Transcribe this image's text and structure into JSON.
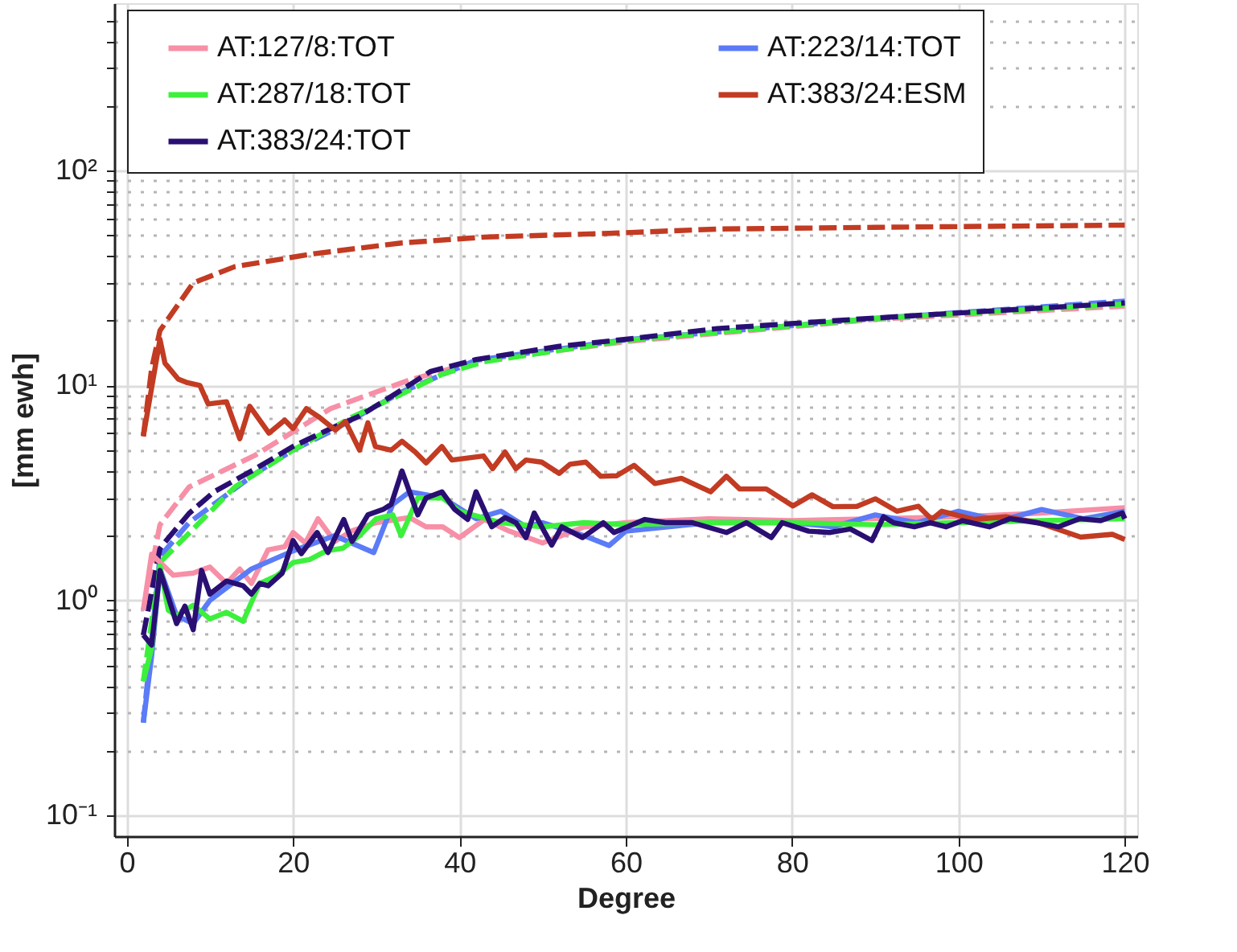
{
  "chart_data": {
    "type": "line",
    "xlabel": "Degree",
    "ylabel": "[mm ewh]",
    "log": "y",
    "grid": true,
    "legend": "top",
    "xlim": [
      -1.5,
      121.5
    ],
    "xticks": [
      0,
      20,
      40,
      60,
      80,
      100,
      120
    ],
    "ylim": [
      0.08,
      600
    ],
    "yticks": [
      {
        "value": 0.1,
        "label": "10⁻¹"
      },
      {
        "value": 0.2,
        "label": null
      },
      {
        "value": 0.3,
        "label": null
      },
      {
        "value": 0.4,
        "label": null
      },
      {
        "value": 0.5,
        "label": null
      },
      {
        "value": 0.6,
        "label": null
      },
      {
        "value": 0.7,
        "label": null
      },
      {
        "value": 0.8,
        "label": null
      },
      {
        "value": 0.9,
        "label": null
      },
      {
        "value": 1,
        "label": "10⁰"
      },
      {
        "value": 2,
        "label": null
      },
      {
        "value": 3,
        "label": null
      },
      {
        "value": 4,
        "label": null
      },
      {
        "value": 5,
        "label": null
      },
      {
        "value": 6,
        "label": null
      },
      {
        "value": 7,
        "label": null
      },
      {
        "value": 8,
        "label": null
      },
      {
        "value": 9,
        "label": null
      },
      {
        "value": 10,
        "label": "10¹"
      },
      {
        "value": 20,
        "label": null
      },
      {
        "value": 30,
        "label": null
      },
      {
        "value": 40,
        "label": null
      },
      {
        "value": 50,
        "label": null
      },
      {
        "value": 60,
        "label": null
      },
      {
        "value": 70,
        "label": null
      },
      {
        "value": 80,
        "label": null
      },
      {
        "value": 90,
        "label": null
      },
      {
        "value": 100,
        "label": "10²"
      },
      {
        "value": 200,
        "label": null
      },
      {
        "value": 300,
        "label": null
      },
      {
        "value": 400,
        "label": null
      },
      {
        "value": 500,
        "label": null
      }
    ],
    "series": [
      {
        "color": "#c23b22",
        "line_style": "dashed",
        "x": [
          2,
          3,
          4,
          8,
          13,
          22.5,
          33,
          43,
          58,
          71,
          90,
          120
        ],
        "values": [
          5.8,
          12,
          18,
          30,
          35.7,
          41,
          46,
          49,
          51,
          53.4,
          54.4,
          55.7
        ]
      },
      {
        "color": "#f78fa7",
        "line_style": "dashed",
        "x": [
          2,
          4,
          7.5,
          15.5,
          24.5,
          34,
          42,
          60,
          90,
          120
        ],
        "values": [
          0.9,
          2.25,
          3.37,
          4.75,
          7.8,
          10.6,
          12.9,
          16.0,
          20.3,
          23.4
        ]
      },
      {
        "color": "#5b7bf7",
        "line_style": "dashed",
        "x": [
          2,
          4,
          7.5,
          15.5,
          20,
          24.5,
          33,
          42,
          60,
          90,
          120
        ],
        "values": [
          0.27,
          1.6,
          2.3,
          3.9,
          5.0,
          6.1,
          9.3,
          13.1,
          16.3,
          20.5,
          24.7
        ]
      },
      {
        "color": "#3cf03c",
        "line_style": "dashed",
        "x": [
          2,
          4,
          8.5,
          13,
          20,
          27,
          33,
          38,
          43,
          60,
          90,
          120
        ],
        "values": [
          0.42,
          1.5,
          2.25,
          3.37,
          5.0,
          7.1,
          9.1,
          11.3,
          12.9,
          16.2,
          20.5,
          23.9
        ]
      },
      {
        "color": "#2a0f73",
        "line_style": "dashed",
        "x": [
          2,
          4,
          5,
          7.5,
          10.5,
          15.5,
          20,
          24.5,
          28,
          33,
          36.5,
          42,
          52,
          60,
          71,
          90,
          120
        ],
        "values": [
          0.69,
          1.74,
          1.95,
          2.54,
          3.2,
          4.1,
          5.2,
          6.3,
          7.2,
          9.5,
          11.6,
          13.2,
          15.2,
          16.4,
          18.4,
          20.6,
          24.2
        ]
      },
      {
        "name": "AT:127/8:TOT",
        "color": "#f78fa7",
        "x": [
          2,
          3,
          5.6,
          8,
          10,
          12,
          13.6,
          15,
          17,
          19,
          20,
          21.5,
          23,
          25,
          27,
          30,
          34,
          36,
          38,
          40,
          43,
          46,
          50,
          55,
          60,
          70,
          80,
          90,
          100,
          110,
          120
        ],
        "values": [
          0.9,
          1.64,
          1.31,
          1.34,
          1.43,
          1.2,
          1.4,
          1.2,
          1.72,
          1.78,
          2.07,
          1.85,
          2.4,
          1.88,
          2.1,
          2.3,
          2.43,
          2.2,
          2.2,
          1.96,
          2.38,
          2.1,
          1.85,
          2.2,
          2.3,
          2.4,
          2.35,
          2.4,
          2.45,
          2.55,
          2.7
        ]
      },
      {
        "name": "AT:223/14:TOT",
        "color": "#5b7bf7",
        "x": [
          2,
          3,
          4,
          6,
          8,
          10,
          15,
          20,
          25,
          29.7,
          32,
          34,
          38,
          42,
          45,
          48,
          50,
          55,
          58,
          60,
          70,
          80,
          85,
          90,
          95,
          100,
          105,
          110,
          115,
          120
        ],
        "values": [
          0.27,
          0.55,
          1.4,
          0.85,
          0.78,
          1.0,
          1.4,
          1.7,
          2.0,
          1.67,
          2.8,
          3.2,
          3.0,
          2.4,
          2.6,
          2.2,
          2.3,
          2.0,
          1.8,
          2.1,
          2.3,
          2.3,
          2.2,
          2.5,
          2.3,
          2.6,
          2.35,
          2.65,
          2.4,
          2.6
        ]
      },
      {
        "name": "AT:287/18:TOT",
        "color": "#3cf03c",
        "x": [
          2,
          3,
          4,
          5,
          6,
          8,
          10,
          12,
          14,
          16,
          18,
          20,
          22,
          24,
          26,
          28,
          30,
          32,
          33,
          35,
          38,
          40,
          45,
          50,
          55,
          60,
          70,
          80,
          90,
          100,
          110,
          120
        ],
        "values": [
          0.42,
          0.6,
          1.45,
          0.9,
          0.85,
          0.95,
          0.82,
          0.88,
          0.8,
          1.2,
          1.3,
          1.5,
          1.55,
          1.7,
          1.75,
          2.0,
          2.4,
          2.5,
          2.0,
          3.0,
          3.0,
          2.6,
          2.3,
          2.2,
          2.3,
          2.25,
          2.3,
          2.3,
          2.25,
          2.3,
          2.35,
          2.4
        ]
      },
      {
        "name": "AT:383/24:ESM",
        "color": "#c23b22",
        "x": [
          2,
          4,
          4.6,
          6.2,
          7.3,
          8.8,
          9.8,
          12,
          13.6,
          14.8,
          17.1,
          19,
          20,
          21.6,
          23.2,
          25.1,
          26.3,
          28,
          29,
          29.9,
          31.8,
          33.1,
          34.7,
          36,
          37.9,
          39.1,
          41,
          42.9,
          44,
          45.5,
          46.8,
          48,
          49.9,
          52,
          53.3,
          55.2,
          57,
          58.9,
          61,
          63.5,
          66.7,
          70.2,
          72.1,
          73.7,
          76.9,
          80.1,
          82.4,
          84.9,
          87.8,
          90,
          92.6,
          95.2,
          96.8,
          98,
          101.9,
          105.7,
          109.6,
          114.7,
          118.5,
          120
        ],
        "values": [
          5.8,
          16.4,
          12.7,
          10.7,
          10.3,
          10,
          8.2,
          8.4,
          5.65,
          8,
          6,
          6.9,
          6.3,
          7.8,
          7.1,
          6.2,
          6.8,
          5.0,
          6.7,
          5.2,
          5.0,
          5.5,
          4.9,
          4.36,
          5.2,
          4.5,
          4.6,
          4.7,
          4.1,
          4.9,
          4.1,
          4.5,
          4.4,
          3.9,
          4.3,
          4.4,
          3.78,
          3.8,
          4.25,
          3.5,
          3.7,
          3.2,
          3.78,
          3.3,
          3.3,
          2.75,
          3.1,
          2.73,
          2.74,
          2.97,
          2.6,
          2.74,
          2.38,
          2.6,
          2.38,
          2.45,
          2.3,
          1.97,
          2.03,
          1.92
        ]
      },
      {
        "name": "AT:383/24:TOT",
        "color": "#2a0f73",
        "x": [
          2,
          3,
          4,
          6,
          7,
          8,
          9,
          10,
          12,
          14,
          15,
          16,
          17,
          18.7,
          20,
          21,
          22.9,
          24.2,
          26.1,
          27.1,
          29,
          30.9,
          31.8,
          33.1,
          35,
          36,
          37.9,
          39.4,
          41,
          42,
          43.9,
          45.5,
          46.8,
          48,
          49,
          51.1,
          52.3,
          54.8,
          57.3,
          58.6,
          62.3,
          64.8,
          68,
          72.1,
          74.5,
          77.5,
          78.8,
          82,
          84.5,
          87,
          89.6,
          91,
          92.2,
          94.7,
          96.6,
          98.5,
          100.5,
          103.7,
          106.2,
          109.4,
          112,
          114.6,
          117.1,
          119.7,
          120
        ],
        "values": [
          0.69,
          0.62,
          1.38,
          0.78,
          0.94,
          0.73,
          1.38,
          1.07,
          1.23,
          1.17,
          1.07,
          1.2,
          1.17,
          1.34,
          1.9,
          1.65,
          2.07,
          1.67,
          2.38,
          1.88,
          2.5,
          2.66,
          2.8,
          4.0,
          2.5,
          3.0,
          3.2,
          2.66,
          2.38,
          3.2,
          2.2,
          2.43,
          2.3,
          1.96,
          2.55,
          1.81,
          2.2,
          1.96,
          2.3,
          2.07,
          2.38,
          2.3,
          2.3,
          2.07,
          2.3,
          1.96,
          2.3,
          2.1,
          2.07,
          2.15,
          1.9,
          2.45,
          2.3,
          2.2,
          2.3,
          2.2,
          2.35,
          2.2,
          2.4,
          2.3,
          2.2,
          2.4,
          2.35,
          2.55,
          2.4
        ]
      }
    ]
  }
}
